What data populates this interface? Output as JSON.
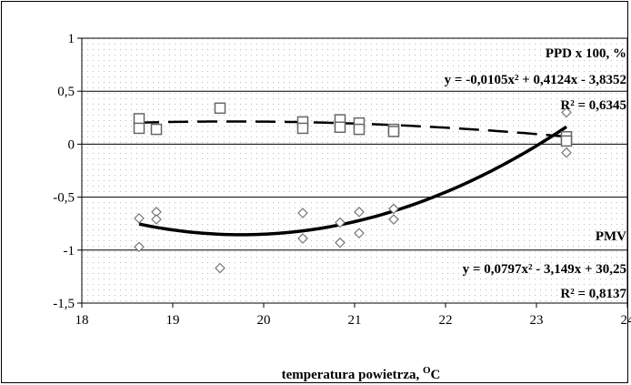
{
  "chart_data": {
    "type": "scatter",
    "title": "",
    "xlabel": "temperatura powietrza, ",
    "xlabel_superscript": "O",
    "xlabel_suffix": "C",
    "ylabel": "",
    "xlim": [
      18,
      24
    ],
    "ylim": [
      -1.5,
      1
    ],
    "x_ticks": [
      "18",
      "19",
      "20",
      "21",
      "22",
      "23",
      "24"
    ],
    "y_ticks": [
      "1",
      "0,5",
      "0",
      "-0,5",
      "-1",
      "-1,5"
    ],
    "x_tick_values": [
      18,
      19,
      20,
      21,
      22,
      23,
      24
    ],
    "y_tick_values": [
      1,
      0.5,
      0,
      -0.5,
      -1,
      -1.5
    ],
    "grid": true,
    "series": [
      {
        "name": "PPD x 100, %",
        "marker": "square",
        "points": [
          [
            18.63,
            0.24
          ],
          [
            18.63,
            0.15
          ],
          [
            18.82,
            0.14
          ],
          [
            19.52,
            0.34
          ],
          [
            20.43,
            0.21
          ],
          [
            20.43,
            0.15
          ],
          [
            20.84,
            0.23
          ],
          [
            20.84,
            0.16
          ],
          [
            21.05,
            0.2
          ],
          [
            21.05,
            0.14
          ],
          [
            21.43,
            0.14
          ],
          [
            21.43,
            0.12
          ],
          [
            23.33,
            0.07
          ],
          [
            23.33,
            0.03
          ]
        ],
        "trendline": {
          "style": "dashed",
          "equation": "y = -0,0105x² + 0,4124x - 3,8352",
          "r2": "R² = 0,6345",
          "coef": [
            -0.0105,
            0.4124,
            -3.8352
          ]
        }
      },
      {
        "name": "PMV",
        "marker": "diamond",
        "points": [
          [
            18.63,
            -0.7
          ],
          [
            18.63,
            -0.97
          ],
          [
            18.82,
            -0.64
          ],
          [
            18.82,
            -0.71
          ],
          [
            19.52,
            -1.17
          ],
          [
            20.43,
            -0.65
          ],
          [
            20.43,
            -0.89
          ],
          [
            20.84,
            -0.74
          ],
          [
            20.84,
            -0.93
          ],
          [
            21.05,
            -0.64
          ],
          [
            21.05,
            -0.84
          ],
          [
            21.43,
            -0.61
          ],
          [
            21.43,
            -0.71
          ],
          [
            23.33,
            0.3
          ],
          [
            23.33,
            -0.08
          ]
        ],
        "trendline": {
          "style": "solid",
          "equation": "y = 0,0797x² - 3,149x + 30,25",
          "r2": "R² = 0,8137",
          "coef": [
            0.0797,
            -3.149,
            30.25
          ]
        }
      }
    ]
  }
}
